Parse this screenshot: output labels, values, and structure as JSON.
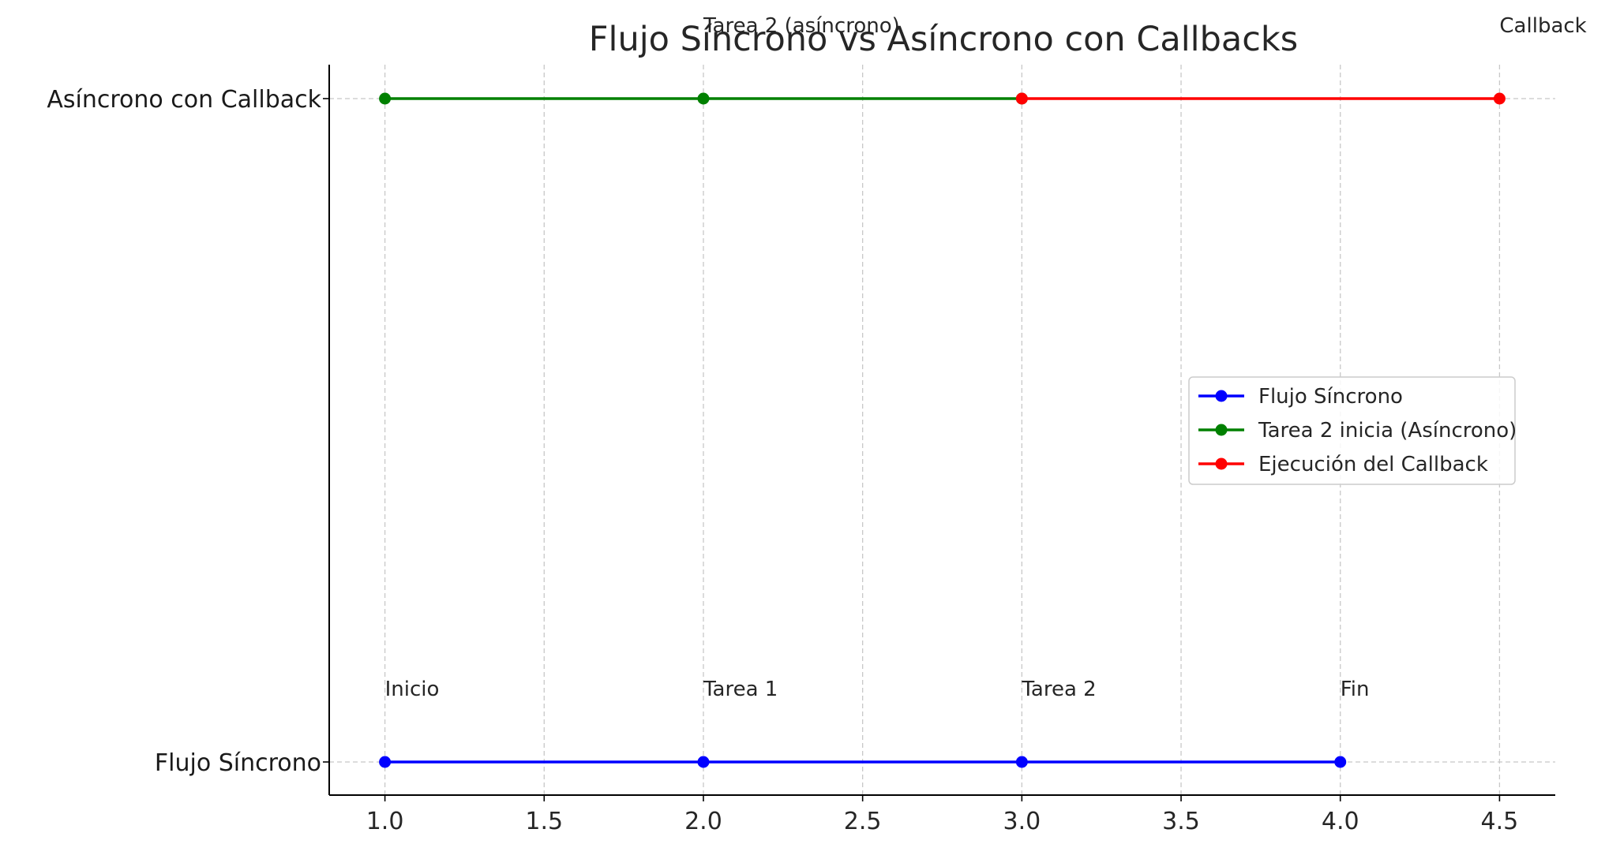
{
  "chart_data": {
    "type": "line",
    "title": "Flujo Síncrono vs Asíncrono con Callbacks",
    "xlabel": "",
    "ylabel": "",
    "xlim": [
      0.825,
      4.675
    ],
    "x_ticks": [
      "1.0",
      "1.5",
      "2.0",
      "2.5",
      "3.0",
      "3.5",
      "4.0",
      "4.5"
    ],
    "y_categories": [
      "Flujo Síncrono",
      "Asíncrono con Callback"
    ],
    "grid": true,
    "legend_position": "center-right",
    "series": [
      {
        "name": "Flujo Síncrono",
        "color": "#0000ff",
        "row": "Flujo Síncrono",
        "x": [
          1,
          2,
          3,
          4
        ]
      },
      {
        "name": "Tarea 2 inicia (Asíncrono)",
        "color": "#008000",
        "row": "Asíncrono con Callback",
        "x": [
          1,
          2,
          3
        ]
      },
      {
        "name": "Ejecución del Callback",
        "color": "#ff0000",
        "row": "Asíncrono con Callback",
        "x": [
          3,
          4.5
        ]
      }
    ],
    "annotations": [
      {
        "text": "Inicio",
        "x": 1,
        "row": "Flujo Síncrono"
      },
      {
        "text": "Tarea 1",
        "x": 2,
        "row": "Flujo Síncrono"
      },
      {
        "text": "Tarea 2",
        "x": 3,
        "row": "Flujo Síncrono"
      },
      {
        "text": "Fin",
        "x": 4,
        "row": "Flujo Síncrono"
      },
      {
        "text": "Tarea 2 (asíncrono)",
        "x": 2,
        "row": "Asíncrono con Callback"
      },
      {
        "text": "Callback",
        "x": 4.5,
        "row": "Asíncrono con Callback"
      }
    ]
  }
}
